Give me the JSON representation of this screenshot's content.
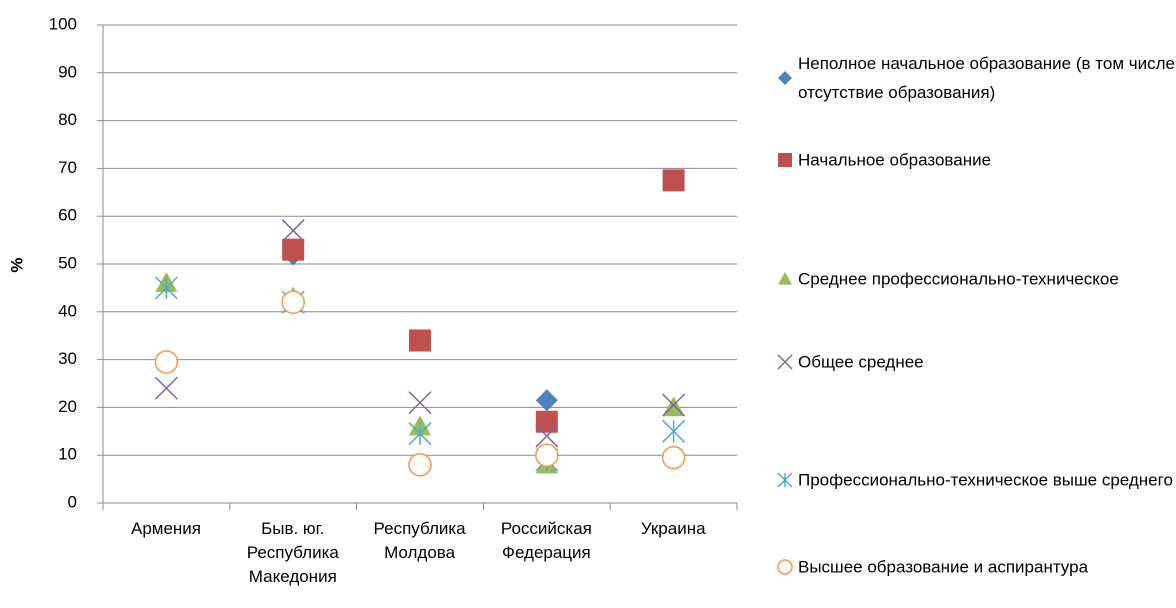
{
  "chart_data": {
    "type": "scatter",
    "categories": [
      "Армения",
      "Быв. юг. Республика Македония",
      "Республика Молдова",
      "Российская Федерация",
      "Украина"
    ],
    "y_label": "%",
    "ylim": [
      0,
      100
    ],
    "yticks": [
      0,
      10,
      20,
      30,
      40,
      50,
      60,
      70,
      80,
      90,
      100
    ],
    "grid": true,
    "legend": "right",
    "series": [
      {
        "name": "Неполное начальное образование (в том числе отсутствие образования)",
        "color": "#4f81bd",
        "marker": "diamond",
        "values": [
          null,
          52,
          null,
          21.5,
          null
        ]
      },
      {
        "name": "Начальное образование",
        "color": "#c0504d",
        "marker": "square",
        "values": [
          null,
          53,
          34,
          17,
          67.5
        ]
      },
      {
        "name": "Среднее профессионально-техническое",
        "color": "#9bbb59",
        "marker": "triangle",
        "values": [
          46,
          43,
          16,
          8,
          20
        ]
      },
      {
        "name": "Общее среднее",
        "color": "#8064a2",
        "marker": "x",
        "values": [
          24,
          57,
          21,
          14,
          20.5
        ]
      },
      {
        "name": "Профессионально-техническое выше среднего",
        "color": "#4bacc6",
        "marker": "star",
        "values": [
          45,
          42,
          14.5,
          9,
          15
        ]
      },
      {
        "name": "Высшее образование и аспирантура",
        "color": "#f79646",
        "marker": "circle",
        "values": [
          29.5,
          42,
          8,
          10,
          9.5
        ]
      }
    ]
  }
}
